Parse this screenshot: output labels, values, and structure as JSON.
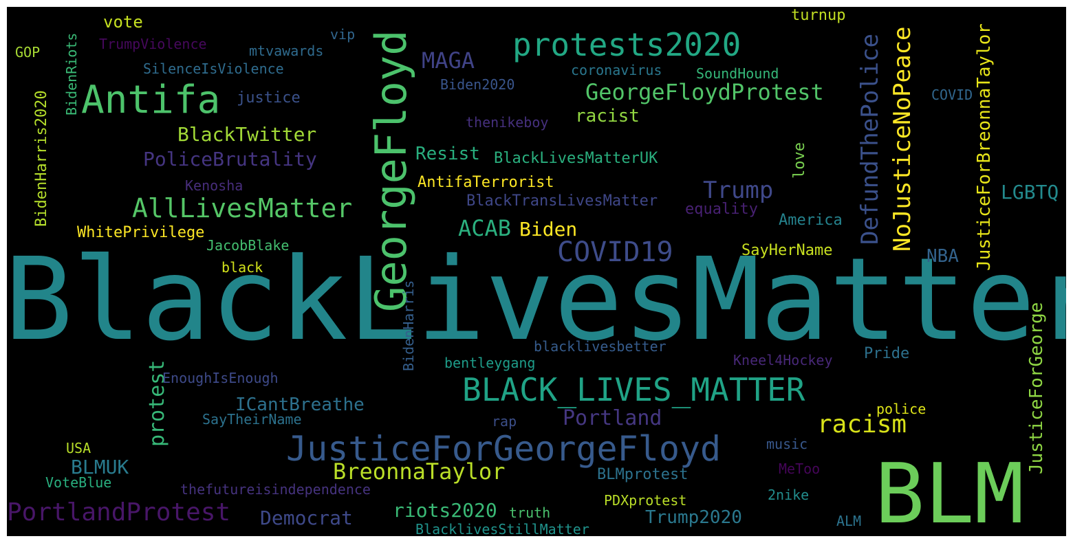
{
  "cloud": {
    "background": "#000000",
    "words": [
      {
        "text": "BlackLivesMatter",
        "color": "#22858a"
      },
      {
        "text": "BLM",
        "color": "#6ccd5a"
      },
      {
        "text": "GeorgeFloyd",
        "color": "#4cc26c"
      },
      {
        "text": "Antifa",
        "color": "#4dc36b"
      },
      {
        "text": "protests2020",
        "color": "#22a884"
      },
      {
        "text": "BLACK_LIVES_MATTER",
        "color": "#20a386"
      },
      {
        "text": "JusticeForGeorgeFloyd",
        "color": "#375a8c"
      },
      {
        "text": "AllLivesMatter",
        "color": "#55c667"
      },
      {
        "text": "NoJusticeNoPeace",
        "color": "#fde725"
      },
      {
        "text": "DefundThePolice",
        "color": "#3b518b"
      },
      {
        "text": "GeorgeFloydProtest",
        "color": "#52c569"
      },
      {
        "text": "COVID19",
        "color": "#3e4c8a"
      },
      {
        "text": "PortlandProtest",
        "color": "#481668"
      },
      {
        "text": "racism",
        "color": "#d8e219"
      },
      {
        "text": "BreonnaTaylor",
        "color": "#bade28"
      },
      {
        "text": "Trump",
        "color": "#3f4889"
      },
      {
        "text": "MAGA",
        "color": "#404387"
      },
      {
        "text": "ACAB",
        "color": "#2bb07f"
      },
      {
        "text": "JusticeForBreonnaTaylor",
        "color": "#e7e419"
      },
      {
        "text": "Portland",
        "color": "#453781"
      },
      {
        "text": "protest",
        "color": "#37b878"
      },
      {
        "text": "BlackTwitter",
        "color": "#a2da37"
      },
      {
        "text": "PoliceBrutality",
        "color": "#453581"
      },
      {
        "text": "riots2020",
        "color": "#3aba76"
      },
      {
        "text": "Biden",
        "color": "#fde725"
      },
      {
        "text": "JusticeForGeorge",
        "color": "#8fd744"
      },
      {
        "text": "LGBTQ",
        "color": "#238a8d"
      },
      {
        "text": "BLMUK",
        "color": "#297b8e"
      },
      {
        "text": "Democrat",
        "color": "#3e4989"
      },
      {
        "text": "ICantBreathe",
        "color": "#2d718e"
      },
      {
        "text": "Trump2020",
        "color": "#2a788e"
      },
      {
        "text": "NBA",
        "color": "#33638d"
      },
      {
        "text": "racist",
        "color": "#92d742"
      },
      {
        "text": "Resist",
        "color": "#29af7f"
      },
      {
        "text": "BidenHarris2020",
        "color": "#b5de2b"
      },
      {
        "text": "BLMprotest",
        "color": "#2c728e"
      },
      {
        "text": "vote",
        "color": "#c5e021"
      },
      {
        "text": "turnup",
        "color": "#c2df23"
      },
      {
        "text": "BlackLivesMatterUK",
        "color": "#2ab07f"
      },
      {
        "text": "AntifaTerrorist",
        "color": "#fde725"
      },
      {
        "text": "BlackTransLivesMatter",
        "color": "#3f4788"
      },
      {
        "text": "Pride",
        "color": "#2d718e"
      },
      {
        "text": "SayHerName",
        "color": "#c8e020"
      },
      {
        "text": "love",
        "color": "#7ad151"
      },
      {
        "text": "justice",
        "color": "#3b528b"
      },
      {
        "text": "WhitePrivilege",
        "color": "#fde725"
      },
      {
        "text": "equality",
        "color": "#482173"
      },
      {
        "text": "America",
        "color": "#25838e"
      },
      {
        "text": "SilenceIsViolence",
        "color": "#2f6c8e"
      },
      {
        "text": "TrumpViolence",
        "color": "#46085c"
      },
      {
        "text": "mtvawards",
        "color": "#2f6b8e"
      },
      {
        "text": "vip",
        "color": "#31668e"
      },
      {
        "text": "coronavirus",
        "color": "#2a778e"
      },
      {
        "text": "SoundHound",
        "color": "#35b779"
      },
      {
        "text": "Biden2020",
        "color": "#39558c"
      },
      {
        "text": "COVID",
        "color": "#31678e"
      },
      {
        "text": "thenikeboy",
        "color": "#46307e"
      },
      {
        "text": "Kenosha",
        "color": "#472d7b"
      },
      {
        "text": "JacobBlake",
        "color": "#44bf70"
      },
      {
        "text": "black",
        "color": "#d2e21b"
      },
      {
        "text": "BidenRiots",
        "color": "#3aba76"
      },
      {
        "text": "GOP",
        "color": "#a8db34"
      },
      {
        "text": "blacklivesbetter",
        "color": "#365c8d"
      },
      {
        "text": "bentleygang",
        "color": "#1e9c89"
      },
      {
        "text": "Kneel4Hockey",
        "color": "#482878"
      },
      {
        "text": "BidenHarris",
        "color": "#355f8d"
      },
      {
        "text": "EnoughIsEnough",
        "color": "#3e4a89"
      },
      {
        "text": "SayTheirName",
        "color": "#2c728e"
      },
      {
        "text": "rap",
        "color": "#3c4f8a"
      },
      {
        "text": "police",
        "color": "#dde318"
      },
      {
        "text": "USA",
        "color": "#b8de29"
      },
      {
        "text": "music",
        "color": "#38588c"
      },
      {
        "text": "MeToo",
        "color": "#450559"
      },
      {
        "text": "VoteBlue",
        "color": "#29af7f"
      },
      {
        "text": "thefutureisindependence",
        "color": "#46337f"
      },
      {
        "text": "PDXprotest",
        "color": "#bade28"
      },
      {
        "text": "2nike",
        "color": "#228d8d"
      },
      {
        "text": "truth",
        "color": "#4ac16d"
      },
      {
        "text": "ALM",
        "color": "#2c738e"
      },
      {
        "text": "BlacklivesStillMatter",
        "color": "#20938c"
      }
    ]
  }
}
